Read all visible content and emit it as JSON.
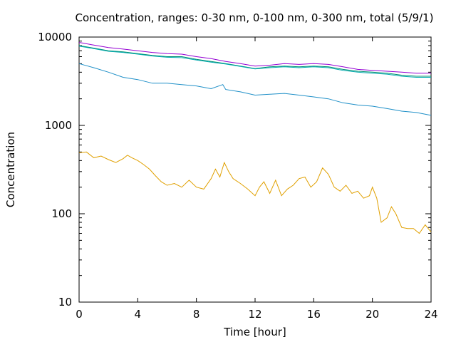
{
  "chart_data": {
    "type": "line",
    "title": "Concentration, ranges: 0-30 nm, 0-100 nm, 0-300 nm, total (5/9/1)",
    "xlabel": "Time [hour]",
    "ylabel": "Concentration",
    "xlim": [
      0,
      24
    ],
    "ylim": [
      10,
      10000
    ],
    "yscale": "log",
    "x_ticks": [
      0,
      4,
      8,
      12,
      16,
      20,
      24
    ],
    "y_ticks": [
      10,
      100,
      1000,
      10000
    ],
    "x_tick_labels": [
      "0",
      "4",
      "8",
      "12",
      "16",
      "20",
      "24"
    ],
    "y_tick_labels": [
      "10",
      "100",
      "1000",
      "10000"
    ],
    "grid": false,
    "legend": "none",
    "series": [
      {
        "color": "#e0a000",
        "x": [
          0,
          0.5,
          1,
          1.5,
          2,
          2.5,
          3,
          3.3,
          3.6,
          4,
          4.4,
          4.8,
          5.2,
          5.6,
          6,
          6.5,
          7,
          7.5,
          8,
          8.5,
          9,
          9.3,
          9.6,
          9.9,
          10.2,
          10.5,
          11,
          11.5,
          12,
          12.3,
          12.6,
          13,
          13.4,
          13.8,
          14.2,
          14.6,
          15,
          15.4,
          15.8,
          16.2,
          16.6,
          17,
          17.4,
          17.8,
          18.2,
          18.6,
          19,
          19.4,
          19.8,
          20,
          20.3,
          20.6,
          21,
          21.3,
          21.6,
          22,
          22.4,
          22.8,
          23.2,
          23.6,
          24
        ],
        "y": [
          490,
          500,
          430,
          450,
          410,
          380,
          420,
          460,
          430,
          400,
          360,
          320,
          270,
          230,
          210,
          220,
          200,
          240,
          200,
          190,
          250,
          320,
          260,
          380,
          300,
          250,
          220,
          190,
          160,
          200,
          230,
          170,
          240,
          160,
          190,
          210,
          250,
          260,
          200,
          230,
          330,
          280,
          200,
          180,
          210,
          170,
          180,
          150,
          160,
          200,
          150,
          80,
          90,
          120,
          100,
          70,
          68,
          68,
          60,
          75,
          62
        ]
      },
      {
        "color": "#2090c8",
        "x": [
          0,
          1,
          2,
          3,
          4,
          5,
          6,
          7,
          8,
          9,
          9.8,
          10,
          11,
          12,
          13,
          14,
          15,
          16,
          17,
          18,
          19,
          20,
          21,
          22,
          23,
          24
        ],
        "y": [
          5000,
          4500,
          4000,
          3500,
          3300,
          3000,
          3000,
          2900,
          2800,
          2600,
          2900,
          2550,
          2400,
          2200,
          2250,
          2300,
          2200,
          2100,
          2000,
          1800,
          1700,
          1650,
          1550,
          1450,
          1400,
          1300
        ]
      },
      {
        "color": "#009070",
        "x": [
          0,
          1,
          2,
          3,
          4,
          5,
          6,
          7,
          8,
          9,
          10,
          11,
          12,
          13,
          14,
          15,
          16,
          17,
          18,
          19,
          20,
          21,
          22,
          23,
          24
        ],
        "y": [
          8000,
          7500,
          7000,
          6800,
          6500,
          6200,
          6000,
          6000,
          5600,
          5300,
          5000,
          4700,
          4400,
          4600,
          4700,
          4600,
          4700,
          4600,
          4300,
          4100,
          4000,
          3900,
          3700,
          3600,
          3600
        ]
      },
      {
        "color": "#9400d3",
        "x": [
          0,
          1,
          2,
          3,
          4,
          5,
          6,
          7,
          8,
          9,
          10,
          11,
          12,
          13,
          14,
          15,
          16,
          17,
          18,
          19,
          20,
          21,
          22,
          23,
          24
        ],
        "y": [
          8700,
          8100,
          7600,
          7300,
          7000,
          6700,
          6500,
          6400,
          6000,
          5700,
          5300,
          5000,
          4700,
          4800,
          5000,
          4900,
          5000,
          4900,
          4600,
          4300,
          4200,
          4100,
          4000,
          3900,
          3900
        ]
      },
      {
        "color": "#00aab0",
        "x": [
          0,
          1,
          2,
          3,
          4,
          5,
          6,
          7,
          8,
          9,
          10,
          11,
          12,
          13,
          14,
          15,
          16,
          17,
          18,
          19,
          20,
          21,
          22,
          23,
          24
        ],
        "y": [
          7900,
          7400,
          6900,
          6700,
          6400,
          6100,
          5900,
          5850,
          5500,
          5200,
          4950,
          4650,
          4350,
          4500,
          4600,
          4500,
          4600,
          4500,
          4200,
          4000,
          3900,
          3800,
          3600,
          3500,
          3500
        ]
      }
    ]
  }
}
